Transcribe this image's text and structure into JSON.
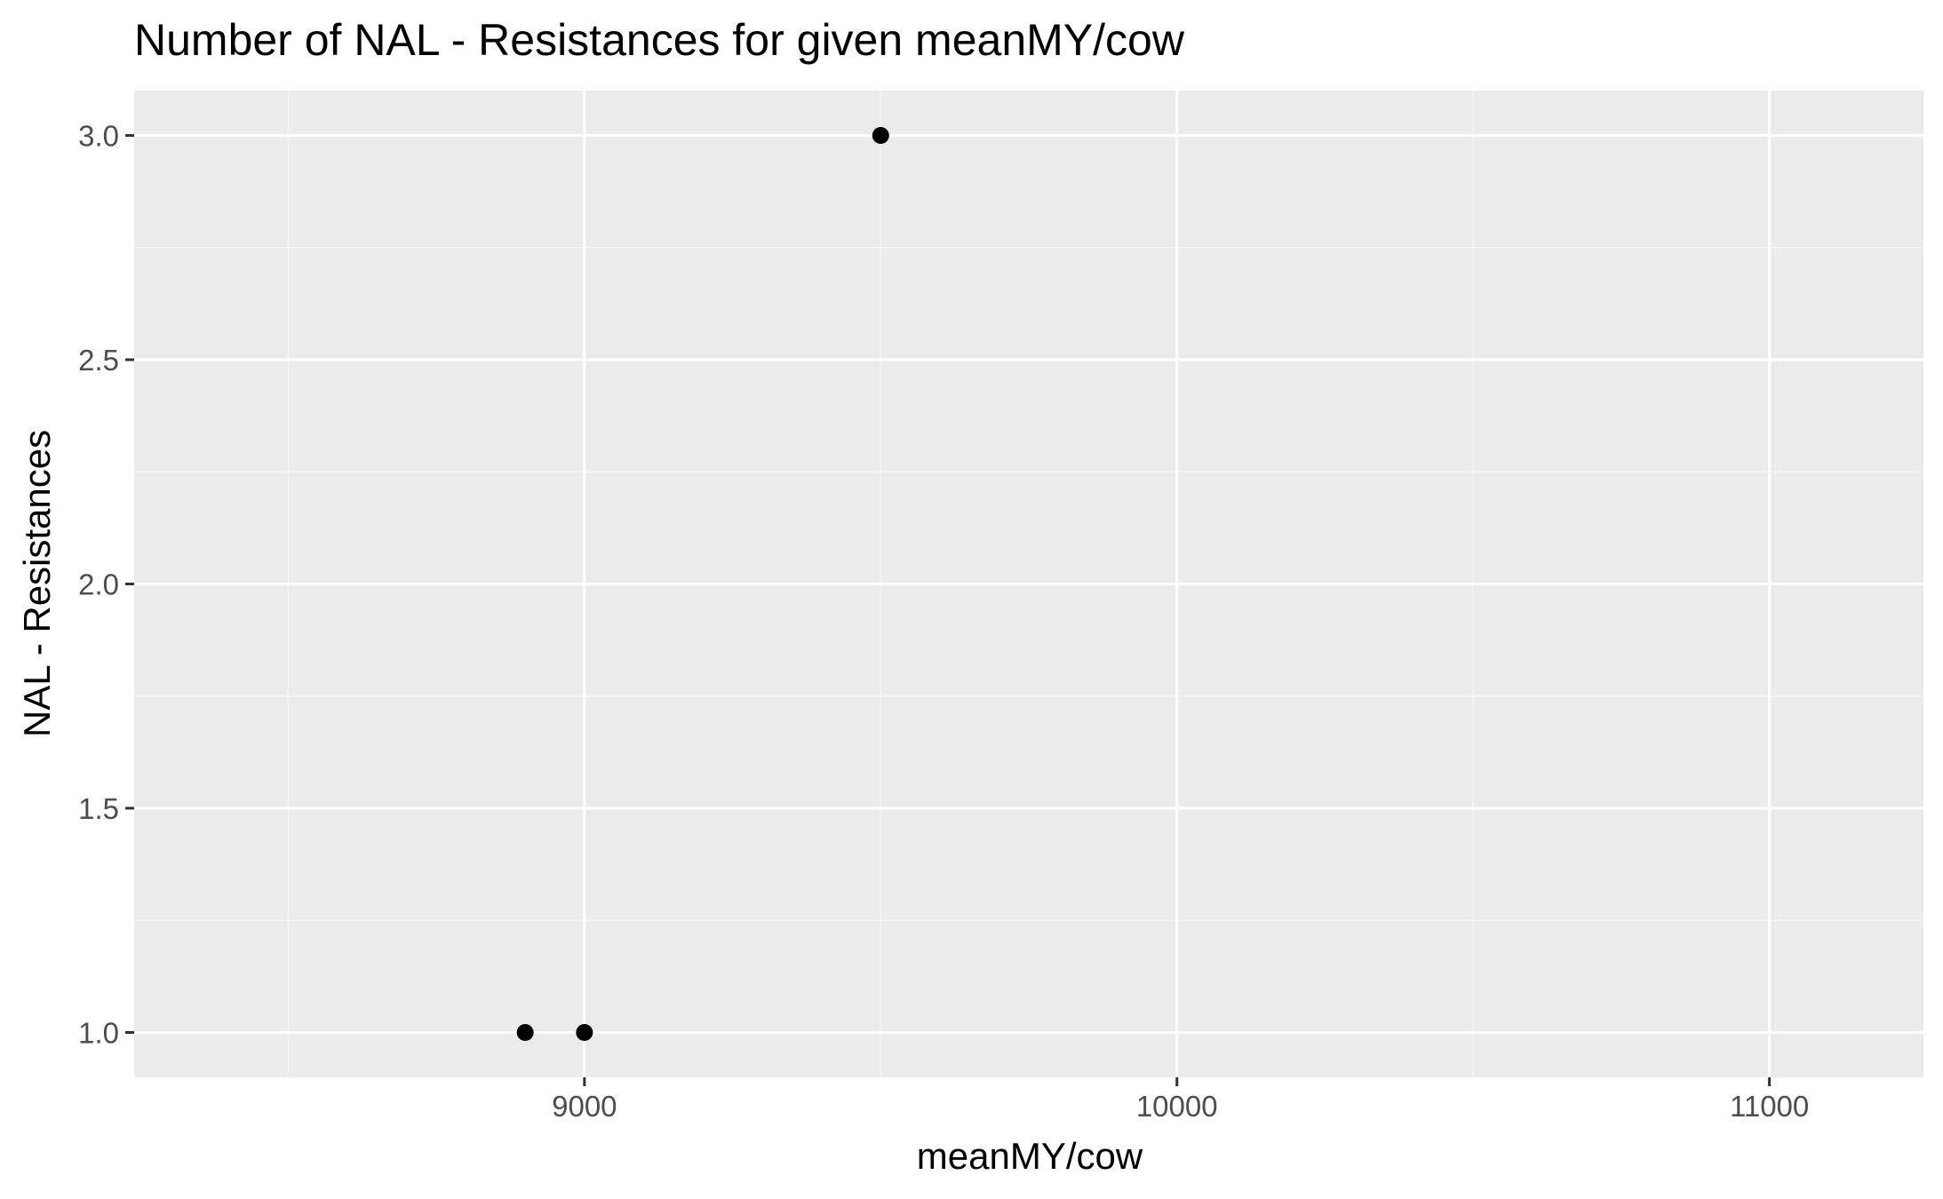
{
  "chart_data": {
    "type": "scatter",
    "title": "Number of NAL - Resistances for given meanMY/cow",
    "xlabel": "meanMY/cow",
    "ylabel": "NAL - Resistances",
    "xlim": [
      8240,
      11260
    ],
    "ylim": [
      0.9,
      3.1
    ],
    "x_ticks": [
      9000,
      10000,
      11000
    ],
    "x_tick_labels": [
      "9000",
      "10000",
      "11000"
    ],
    "x_minor_ticks": [
      8500,
      9500,
      10500
    ],
    "y_ticks": [
      1.0,
      1.5,
      2.0,
      2.5,
      3.0
    ],
    "y_tick_labels": [
      "1.0",
      "1.5",
      "2.0",
      "2.5",
      "3.0"
    ],
    "y_minor_ticks": [
      1.25,
      1.75,
      2.25,
      2.75
    ],
    "grid": true,
    "points": [
      {
        "x": 8900,
        "y": 1
      },
      {
        "x": 9000,
        "y": 1
      },
      {
        "x": 9500,
        "y": 3
      }
    ],
    "colors": {
      "panel_background": "#ebebeb",
      "grid_major": "#ffffff",
      "grid_minor": "#f5f5f5",
      "point": "#000000",
      "tick_mark": "#333333"
    }
  }
}
